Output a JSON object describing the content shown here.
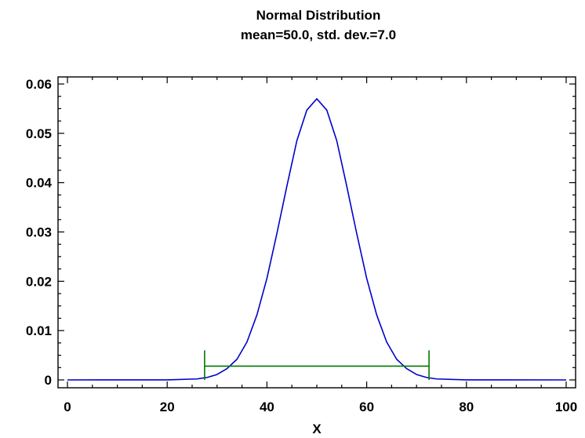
{
  "chart_data": {
    "type": "line",
    "title": "Normal Distribution",
    "subtitle": "mean=50.0, std. dev.=7.0",
    "xlabel": "X",
    "ylabel": "",
    "xlim": [
      0,
      100
    ],
    "ylim": [
      0,
      0.06
    ],
    "grid": false,
    "x_ticks": [
      0,
      20,
      40,
      60,
      80,
      100
    ],
    "x_tick_labels": [
      "0",
      "20",
      "40",
      "60",
      "80",
      "100"
    ],
    "y_ticks": [
      0,
      0.01,
      0.02,
      0.03,
      0.04,
      0.05,
      0.06
    ],
    "y_tick_labels": [
      "0",
      "0.01",
      "0.02",
      "0.03",
      "0.04",
      "0.05",
      "0.06"
    ],
    "series": [
      {
        "color": "#0000cc",
        "x": [
          0,
          20,
          26,
          28,
          30,
          32,
          34,
          36,
          38,
          40,
          42,
          44,
          46,
          48,
          50,
          52,
          54,
          56,
          58,
          60,
          62,
          64,
          66,
          68,
          70,
          72,
          74,
          80,
          100
        ],
        "y": [
          0,
          1e-05,
          0.0002,
          0.0005,
          0.0011,
          0.0023,
          0.0042,
          0.0077,
          0.0132,
          0.0206,
          0.0297,
          0.0393,
          0.0485,
          0.0547,
          0.057,
          0.0547,
          0.0485,
          0.0393,
          0.0297,
          0.0206,
          0.0132,
          0.0077,
          0.0042,
          0.0023,
          0.0011,
          0.0005,
          0.0002,
          1e-05,
          0
        ]
      }
    ],
    "annotations": [
      {
        "type": "interval",
        "color": "#007700",
        "x_start": 27.5,
        "x_end": 72.5,
        "y": 0.0028,
        "cap_top": 0.006,
        "cap_bottom": 0
      }
    ]
  }
}
